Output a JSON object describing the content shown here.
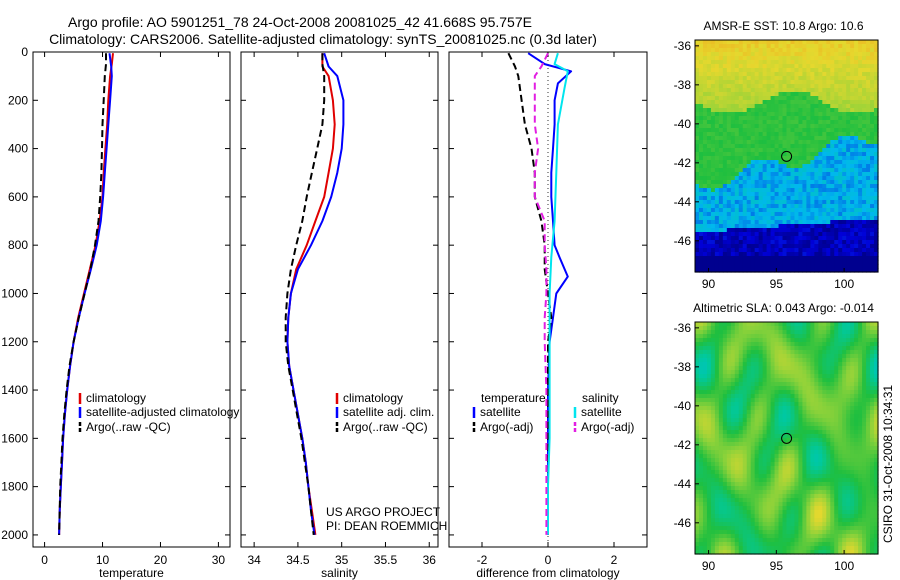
{
  "title": {
    "line1": "Argo profile: AO 5901251_78 24-Oct-2008 20081025_42 41.668S 95.757E",
    "line2": "Climatology: CARS2006. Satellite-adjusted climatology: synTS_20081025.nc (0.3d later)"
  },
  "side_text": "CSIRO 31-Oct-2008 10:34:31",
  "colors": {
    "red": "#e00000",
    "blue": "#0000ff",
    "black": "#000000",
    "cyan": "#00e5ee",
    "magenta": "#e21ee2"
  },
  "chart_data": [
    {
      "type": "line",
      "name": "temperature-panel",
      "xlabel": "temperature",
      "ylabel": "",
      "xlim": [
        -2,
        32
      ],
      "ylim": [
        2050,
        0
      ],
      "y_reversed": true,
      "xticks": [
        "0",
        "10",
        "20",
        "30"
      ],
      "xtick_values": [
        0,
        10,
        20,
        30
      ],
      "yticks": [
        "0",
        "200",
        "400",
        "600",
        "800",
        "1000",
        "1200",
        "1400",
        "1600",
        "1800",
        "2000"
      ],
      "ytick_values": [
        0,
        200,
        400,
        600,
        800,
        1000,
        1200,
        1400,
        1600,
        1800,
        2000
      ],
      "legend": [
        "climatology",
        "satellite-adjusted climatology",
        "Argo(..raw -QC)"
      ],
      "legend_position": "bottom-right",
      "series": [
        {
          "name": "climatology",
          "color": "red",
          "dash": false,
          "points": [
            [
              11.8,
              5
            ],
            [
              11.6,
              50
            ],
            [
              11.3,
              100
            ],
            [
              11.0,
              200
            ],
            [
              10.8,
              300
            ],
            [
              10.5,
              400
            ],
            [
              10.2,
              500
            ],
            [
              10.0,
              600
            ],
            [
              9.5,
              700
            ],
            [
              8.8,
              800
            ],
            [
              7.8,
              900
            ],
            [
              6.8,
              1000
            ],
            [
              5.8,
              1100
            ],
            [
              5.0,
              1200
            ],
            [
              4.4,
              1300
            ],
            [
              3.9,
              1400
            ],
            [
              3.5,
              1500
            ],
            [
              3.2,
              1600
            ],
            [
              3.0,
              1700
            ],
            [
              2.8,
              1800
            ],
            [
              2.6,
              1900
            ],
            [
              2.5,
              2000
            ]
          ]
        },
        {
          "name": "satellite-adjusted climatology",
          "color": "blue",
          "dash": false,
          "points": [
            [
              11.2,
              5
            ],
            [
              11.5,
              60
            ],
            [
              11.6,
              100
            ],
            [
              11.3,
              200
            ],
            [
              11.0,
              300
            ],
            [
              10.7,
              400
            ],
            [
              10.4,
              500
            ],
            [
              10.1,
              600
            ],
            [
              9.7,
              700
            ],
            [
              9.0,
              800
            ],
            [
              8.0,
              900
            ],
            [
              6.9,
              1000
            ],
            [
              5.9,
              1100
            ],
            [
              5.0,
              1200
            ],
            [
              4.4,
              1300
            ],
            [
              3.9,
              1400
            ],
            [
              3.5,
              1500
            ],
            [
              3.2,
              1600
            ],
            [
              3.0,
              1700
            ],
            [
              2.8,
              1800
            ],
            [
              2.6,
              1900
            ],
            [
              2.5,
              2000
            ]
          ]
        },
        {
          "name": "Argo(..raw -QC)",
          "color": "black",
          "dash": true,
          "points": [
            [
              10.6,
              5
            ],
            [
              10.6,
              50
            ],
            [
              10.4,
              100
            ],
            [
              10.2,
              200
            ],
            [
              10.0,
              300
            ],
            [
              9.9,
              400
            ],
            [
              9.8,
              500
            ],
            [
              9.6,
              600
            ],
            [
              9.3,
              700
            ],
            [
              8.7,
              800
            ],
            [
              7.9,
              900
            ],
            [
              6.9,
              1000
            ],
            [
              5.9,
              1100
            ],
            [
              5.0,
              1200
            ],
            [
              4.3,
              1300
            ],
            [
              3.8,
              1400
            ],
            [
              3.4,
              1500
            ],
            [
              3.1,
              1600
            ],
            [
              2.9,
              1700
            ],
            [
              2.7,
              1800
            ],
            [
              2.6,
              1900
            ],
            [
              2.5,
              2000
            ]
          ]
        }
      ]
    },
    {
      "type": "line",
      "name": "salinity-panel",
      "xlabel": "salinity",
      "ylabel": "",
      "xlim": [
        33.85,
        36.1
      ],
      "ylim": [
        2050,
        0
      ],
      "y_reversed": true,
      "xticks": [
        "34",
        "34.5",
        "35",
        "35.5",
        "36"
      ],
      "xtick_values": [
        34,
        34.5,
        35,
        35.5,
        36
      ],
      "yticks": [],
      "ytick_values": [
        0,
        200,
        400,
        600,
        800,
        1000,
        1200,
        1400,
        1600,
        1800,
        2000
      ],
      "legend": [
        "climatology",
        "satellite adj. clim.",
        "Argo(..raw -QC)"
      ],
      "legend_position": "bottom-right",
      "annotation": [
        "US ARGO PROJECT",
        "PI: DEAN ROEMMICH"
      ],
      "series": [
        {
          "name": "climatology",
          "color": "red",
          "dash": false,
          "points": [
            [
              34.78,
              5
            ],
            [
              34.78,
              60
            ],
            [
              34.85,
              100
            ],
            [
              34.9,
              200
            ],
            [
              34.92,
              300
            ],
            [
              34.9,
              400
            ],
            [
              34.85,
              500
            ],
            [
              34.8,
              600
            ],
            [
              34.7,
              700
            ],
            [
              34.6,
              800
            ],
            [
              34.48,
              900
            ],
            [
              34.42,
              1000
            ],
            [
              34.39,
              1100
            ],
            [
              34.38,
              1200
            ],
            [
              34.4,
              1300
            ],
            [
              34.45,
              1400
            ],
            [
              34.5,
              1500
            ],
            [
              34.55,
              1600
            ],
            [
              34.59,
              1700
            ],
            [
              34.62,
              1800
            ],
            [
              34.66,
              1900
            ],
            [
              34.7,
              2000
            ]
          ]
        },
        {
          "name": "satellite adj. clim.",
          "color": "blue",
          "dash": false,
          "points": [
            [
              34.8,
              5
            ],
            [
              34.85,
              60
            ],
            [
              34.95,
              100
            ],
            [
              35.02,
              200
            ],
            [
              35.02,
              300
            ],
            [
              35.0,
              400
            ],
            [
              34.95,
              500
            ],
            [
              34.88,
              600
            ],
            [
              34.78,
              700
            ],
            [
              34.65,
              800
            ],
            [
              34.5,
              900
            ],
            [
              34.42,
              1000
            ],
            [
              34.39,
              1100
            ],
            [
              34.38,
              1200
            ],
            [
              34.4,
              1300
            ],
            [
              34.45,
              1400
            ],
            [
              34.5,
              1500
            ],
            [
              34.55,
              1600
            ],
            [
              34.59,
              1700
            ],
            [
              34.62,
              1800
            ],
            [
              34.65,
              1900
            ],
            [
              34.69,
              2000
            ]
          ]
        },
        {
          "name": "Argo(..raw -QC)",
          "color": "black",
          "dash": true,
          "points": [
            [
              34.78,
              5
            ],
            [
              34.78,
              50
            ],
            [
              34.8,
              100
            ],
            [
              34.8,
              200
            ],
            [
              34.78,
              300
            ],
            [
              34.72,
              400
            ],
            [
              34.66,
              500
            ],
            [
              34.6,
              600
            ],
            [
              34.55,
              700
            ],
            [
              34.48,
              800
            ],
            [
              34.42,
              900
            ],
            [
              34.38,
              1000
            ],
            [
              34.36,
              1100
            ],
            [
              34.36,
              1200
            ],
            [
              34.39,
              1300
            ],
            [
              34.44,
              1400
            ],
            [
              34.49,
              1500
            ],
            [
              34.54,
              1600
            ],
            [
              34.58,
              1700
            ],
            [
              34.62,
              1800
            ],
            [
              34.65,
              1900
            ],
            [
              34.68,
              2000
            ]
          ]
        }
      ]
    },
    {
      "type": "line",
      "name": "difference-panel",
      "xlabel": "difference from climatology",
      "ylabel": "",
      "xlim": [
        -3,
        3
      ],
      "ylim": [
        2050,
        0
      ],
      "y_reversed": true,
      "xticks": [
        "-2",
        "0",
        "2"
      ],
      "xtick_values": [
        -2,
        0,
        2
      ],
      "yticks": [],
      "ytick_values": [
        0,
        200,
        400,
        600,
        800,
        1000,
        1200,
        1400,
        1600,
        1800,
        2000
      ],
      "legend": [
        "temperature",
        "satellite",
        "Argo(-adj)",
        "salinity",
        "satellite",
        "Argo(-adj)"
      ],
      "legend_position": "bottom",
      "series": [
        {
          "name": "temperature satellite",
          "color": "blue",
          "dash": false,
          "points": [
            [
              -0.6,
              5
            ],
            [
              -0.1,
              50
            ],
            [
              0.7,
              80
            ],
            [
              0.3,
              130
            ],
            [
              0.2,
              200
            ],
            [
              0.2,
              300
            ],
            [
              0.15,
              400
            ],
            [
              0.1,
              500
            ],
            [
              0.1,
              600
            ],
            [
              0.15,
              700
            ],
            [
              0.2,
              800
            ],
            [
              0.35,
              850
            ],
            [
              0.6,
              930
            ],
            [
              0.25,
              1000
            ],
            [
              0.15,
              1100
            ],
            [
              0.05,
              1200
            ],
            [
              0.0,
              1400
            ],
            [
              0.0,
              1600
            ],
            [
              0.0,
              1800
            ],
            [
              0.0,
              2000
            ]
          ]
        },
        {
          "name": "temperature Argo(-adj)",
          "color": "black",
          "dash": true,
          "points": [
            [
              -1.2,
              5
            ],
            [
              -1.0,
              60
            ],
            [
              -0.9,
              100
            ],
            [
              -0.8,
              200
            ],
            [
              -0.7,
              300
            ],
            [
              -0.5,
              400
            ],
            [
              -0.4,
              500
            ],
            [
              -0.4,
              600
            ],
            [
              -0.2,
              700
            ],
            [
              -0.1,
              800
            ],
            [
              -0.1,
              900
            ],
            [
              0.0,
              1000
            ],
            [
              0.1,
              1100
            ],
            [
              0.0,
              1200
            ],
            [
              0.0,
              1400
            ],
            [
              0.0,
              1600
            ],
            [
              0.0,
              1800
            ],
            [
              0.0,
              2000
            ]
          ]
        },
        {
          "name": "salinity satellite",
          "color": "cyan",
          "dash": false,
          "points": [
            [
              0.3,
              5
            ],
            [
              0.2,
              50
            ],
            [
              0.6,
              80
            ],
            [
              0.5,
              150
            ],
            [
              0.3,
              300
            ],
            [
              0.25,
              500
            ],
            [
              0.2,
              700
            ],
            [
              0.1,
              850
            ],
            [
              0.05,
              1000
            ],
            [
              0.05,
              1200
            ],
            [
              0.05,
              1400
            ],
            [
              0.05,
              1600
            ],
            [
              0.0,
              1800
            ],
            [
              0.0,
              2000
            ]
          ]
        },
        {
          "name": "salinity Argo(-adj)",
          "color": "magenta",
          "dash": true,
          "points": [
            [
              0.0,
              5
            ],
            [
              -0.2,
              60
            ],
            [
              -0.4,
              100
            ],
            [
              -0.4,
              200
            ],
            [
              -0.4,
              300
            ],
            [
              -0.3,
              400
            ],
            [
              -0.4,
              500
            ],
            [
              -0.4,
              600
            ],
            [
              -0.1,
              700
            ],
            [
              -0.1,
              800
            ],
            [
              -0.05,
              900
            ],
            [
              -0.05,
              1000
            ],
            [
              -0.1,
              1100
            ],
            [
              -0.1,
              1200
            ],
            [
              -0.05,
              1400
            ],
            [
              -0.05,
              1600
            ],
            [
              -0.05,
              1800
            ],
            [
              -0.05,
              2000
            ]
          ]
        }
      ]
    },
    {
      "type": "heatmap",
      "name": "sst-map",
      "title": "AMSR-E SST: 10.8 Argo: 10.6",
      "xlim": [
        89,
        102.5
      ],
      "ylim": [
        -47.6,
        -35.7
      ],
      "xticks": [
        "90",
        "95",
        "100"
      ],
      "xtick_values": [
        90,
        95,
        100
      ],
      "yticks": [
        "-36",
        "-38",
        "-40",
        "-42",
        "-44",
        "-46"
      ],
      "ytick_values": [
        -36,
        -38,
        -40,
        -42,
        -44,
        -46
      ],
      "marker": {
        "lon": 95.757,
        "lat": -41.668
      }
    },
    {
      "type": "heatmap",
      "name": "sla-map",
      "title": "Altimetric SLA: 0.043 Argo: -0.014",
      "xlim": [
        89,
        102.5
      ],
      "ylim": [
        -47.6,
        -35.7
      ],
      "xticks": [
        "90",
        "95",
        "100"
      ],
      "xtick_values": [
        90,
        95,
        100
      ],
      "yticks": [
        "-36",
        "-38",
        "-40",
        "-42",
        "-44",
        "-46"
      ],
      "ytick_values": [
        -36,
        -38,
        -40,
        -42,
        -44,
        -46
      ],
      "marker": {
        "lon": 95.757,
        "lat": -41.668
      }
    }
  ]
}
